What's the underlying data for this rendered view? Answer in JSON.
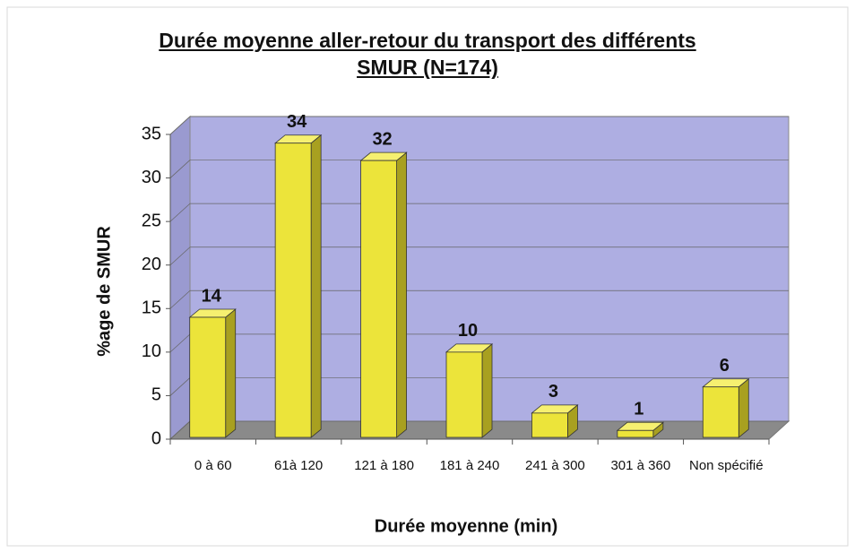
{
  "chart_data": {
    "type": "bar3d",
    "title": "Durée moyenne aller-retour du transport des différents SMUR (N=174)",
    "x_label": "Durée moyenne (min)",
    "y_label": "%age de SMUR",
    "categories": [
      "0 à 60",
      "61à 120",
      "121 à 180",
      "181 à 240",
      "241 à 300",
      "301 à 360",
      "Non spécifié"
    ],
    "values": [
      14,
      34,
      32,
      10,
      3,
      1,
      6
    ],
    "color": "#ece43a",
    "ylim": [
      0,
      35
    ],
    "yticks": [
      0,
      5,
      10,
      15,
      20,
      25,
      30,
      35
    ],
    "grid": true
  }
}
